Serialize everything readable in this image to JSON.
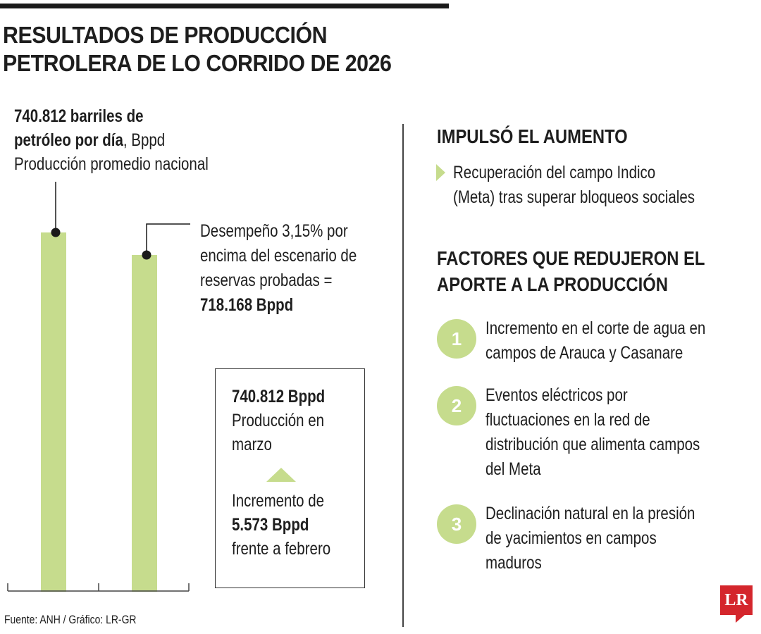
{
  "title": {
    "line1": "RESULTADOS DE PRODUCCIÓN",
    "line2": "PETROLERA DE LO CORRIDO DE 2026"
  },
  "headline": {
    "bold_line1": "740.812 barriles de",
    "bold_line2": "petróleo por día",
    "unit_suffix": ", Bppd",
    "subtitle": "Producción promedio nacional"
  },
  "scenario_note": {
    "line1": "Desempeño 3,15% por",
    "line2": "encima del escenario de",
    "line3": "reservas probadas =",
    "value": "718.168 Bppd"
  },
  "march_box": {
    "value": "740.812 Bppd",
    "label_line1": "Producción en",
    "label_line2": "marzo",
    "increase_label": "Incremento de",
    "increase_value": "5.573 Bppd",
    "increase_suffix": "frente a febrero"
  },
  "source": "Fuente: ANH / Gráfico: LR-GR",
  "impulso": {
    "title": "IMPULSÓ EL AUMENTO",
    "line1": "Recuperación del campo Indico",
    "line2": "(Meta) tras superar bloqueos sociales"
  },
  "factores": {
    "title_line1": "FACTORES QUE REDUJERON EL",
    "title_line2": "APORTE A LA PRODUCCIÓN",
    "items": [
      {
        "number": "1",
        "lines": [
          "Incremento en el corte de agua en",
          "campos de Arauca y Casanare"
        ]
      },
      {
        "number": "2",
        "lines": [
          "Eventos eléctricos por",
          "fluctuaciones en la red de",
          "distribución que alimenta campos",
          "del Meta"
        ]
      },
      {
        "number": "3",
        "lines": [
          "Declinación natural en la presión",
          "de yacimientos en campos",
          "maduros"
        ]
      }
    ]
  },
  "logo": "LR",
  "colors": {
    "bar": "#c6dc8d",
    "text": "#1e1e1e",
    "accent": "#c6dc8d",
    "logo": "#d4262c"
  },
  "chart_data": {
    "type": "bar",
    "values": [
      740812,
      718168
    ],
    "ylim": [
      0,
      740812
    ]
  }
}
